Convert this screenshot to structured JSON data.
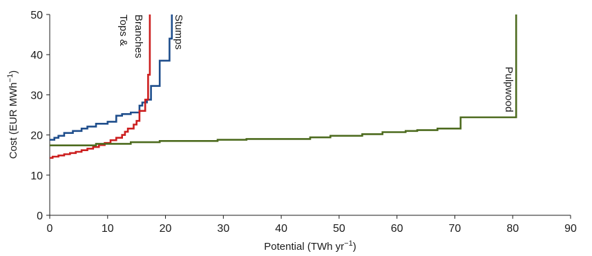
{
  "chart_data": {
    "type": "line",
    "title": "",
    "xlabel": "Potential (TWh yr",
    "xlabel_sup": "−1",
    "xlabel_end": ")",
    "ylabel": "Cost (EUR MWh",
    "ylabel_sup": "−1",
    "ylabel_end": ")",
    "xlim": [
      0,
      90
    ],
    "ylim": [
      0,
      50
    ],
    "xticks": [
      0,
      10,
      20,
      30,
      40,
      50,
      60,
      70,
      80,
      90
    ],
    "yticks": [
      0,
      10,
      20,
      30,
      40,
      50
    ],
    "grid": false,
    "legend": "none",
    "series": [
      {
        "name": "Stumps",
        "color": "#1f4e8c",
        "x": [
          0,
          0.8,
          0.8,
          1.5,
          1.5,
          2.5,
          2.5,
          4.0,
          4.0,
          5.5,
          5.5,
          6.5,
          6.5,
          8.0,
          8.0,
          10.0,
          10.0,
          11.5,
          11.5,
          12.5,
          12.5,
          14.0,
          14.0,
          15.5,
          15.5,
          16.0,
          16.0,
          16.8,
          16.8,
          17.5,
          17.5,
          19.0,
          19.0,
          20.7,
          20.7,
          21.1,
          21.1
        ],
        "y": [
          18.8,
          18.8,
          19.3,
          19.3,
          19.8,
          19.8,
          20.5,
          20.5,
          21.0,
          21.0,
          21.6,
          21.6,
          22.1,
          22.1,
          22.8,
          22.8,
          23.3,
          23.3,
          24.8,
          24.8,
          25.2,
          25.2,
          25.6,
          25.6,
          27.3,
          27.3,
          28.1,
          28.1,
          28.8,
          28.8,
          32.2,
          32.2,
          38.5,
          38.5,
          44.0,
          44.0,
          50.0
        ]
      },
      {
        "name": "Tops & Branches",
        "color": "#cc1f1f",
        "x": [
          0,
          0.5,
          0.5,
          1.5,
          1.5,
          2.5,
          2.5,
          3.5,
          3.5,
          4.5,
          4.5,
          5.5,
          5.5,
          6.5,
          6.5,
          7.5,
          7.5,
          8.5,
          8.5,
          9.5,
          9.5,
          10.5,
          10.5,
          11.5,
          11.5,
          12.5,
          12.5,
          13.0,
          13.0,
          13.5,
          13.5,
          14.5,
          14.5,
          15.0,
          15.0,
          15.5,
          15.5,
          16.5,
          16.5,
          17.0,
          17.0,
          17.3,
          17.3
        ],
        "y": [
          14.3,
          14.3,
          14.6,
          14.6,
          14.9,
          14.9,
          15.2,
          15.2,
          15.5,
          15.5,
          15.8,
          15.8,
          16.2,
          16.2,
          16.6,
          16.6,
          17.0,
          17.0,
          17.5,
          17.5,
          18.0,
          18.0,
          18.7,
          18.7,
          19.3,
          19.3,
          20.0,
          20.0,
          20.8,
          20.8,
          21.6,
          21.6,
          22.6,
          22.6,
          23.5,
          23.5,
          26.0,
          26.0,
          28.8,
          28.8,
          35.0,
          35.0,
          50.0
        ]
      },
      {
        "name": "Pulpwood",
        "color": "#4d6b1f",
        "x": [
          0,
          8.0,
          8.0,
          14.0,
          14.0,
          19.0,
          19.0,
          29.0,
          29.0,
          34.0,
          34.0,
          45.0,
          45.0,
          48.5,
          48.5,
          54.0,
          54.0,
          57.5,
          57.5,
          61.5,
          61.5,
          63.5,
          63.5,
          67.0,
          67.0,
          71.0,
          71.0,
          80.6,
          80.6
        ],
        "y": [
          17.4,
          17.4,
          17.8,
          17.8,
          18.2,
          18.2,
          18.5,
          18.5,
          18.8,
          18.8,
          19.0,
          19.0,
          19.4,
          19.4,
          19.8,
          19.8,
          20.2,
          20.2,
          20.7,
          20.7,
          21.0,
          21.0,
          21.2,
          21.2,
          21.6,
          21.6,
          24.4,
          24.4,
          50.0
        ]
      }
    ],
    "annotations": [
      {
        "text": "Stumps",
        "x": 21.7,
        "y": 50,
        "series": "Stumps"
      },
      {
        "text": "Tops &",
        "x": 12.2,
        "y": 50,
        "series": "Tops & Branches"
      },
      {
        "text": "Branches",
        "x": 14.8,
        "y": 50,
        "series": "Tops & Branches"
      },
      {
        "text": "Pulpwood",
        "x": 78.8,
        "y": 37,
        "series": "Pulpwood"
      }
    ]
  }
}
